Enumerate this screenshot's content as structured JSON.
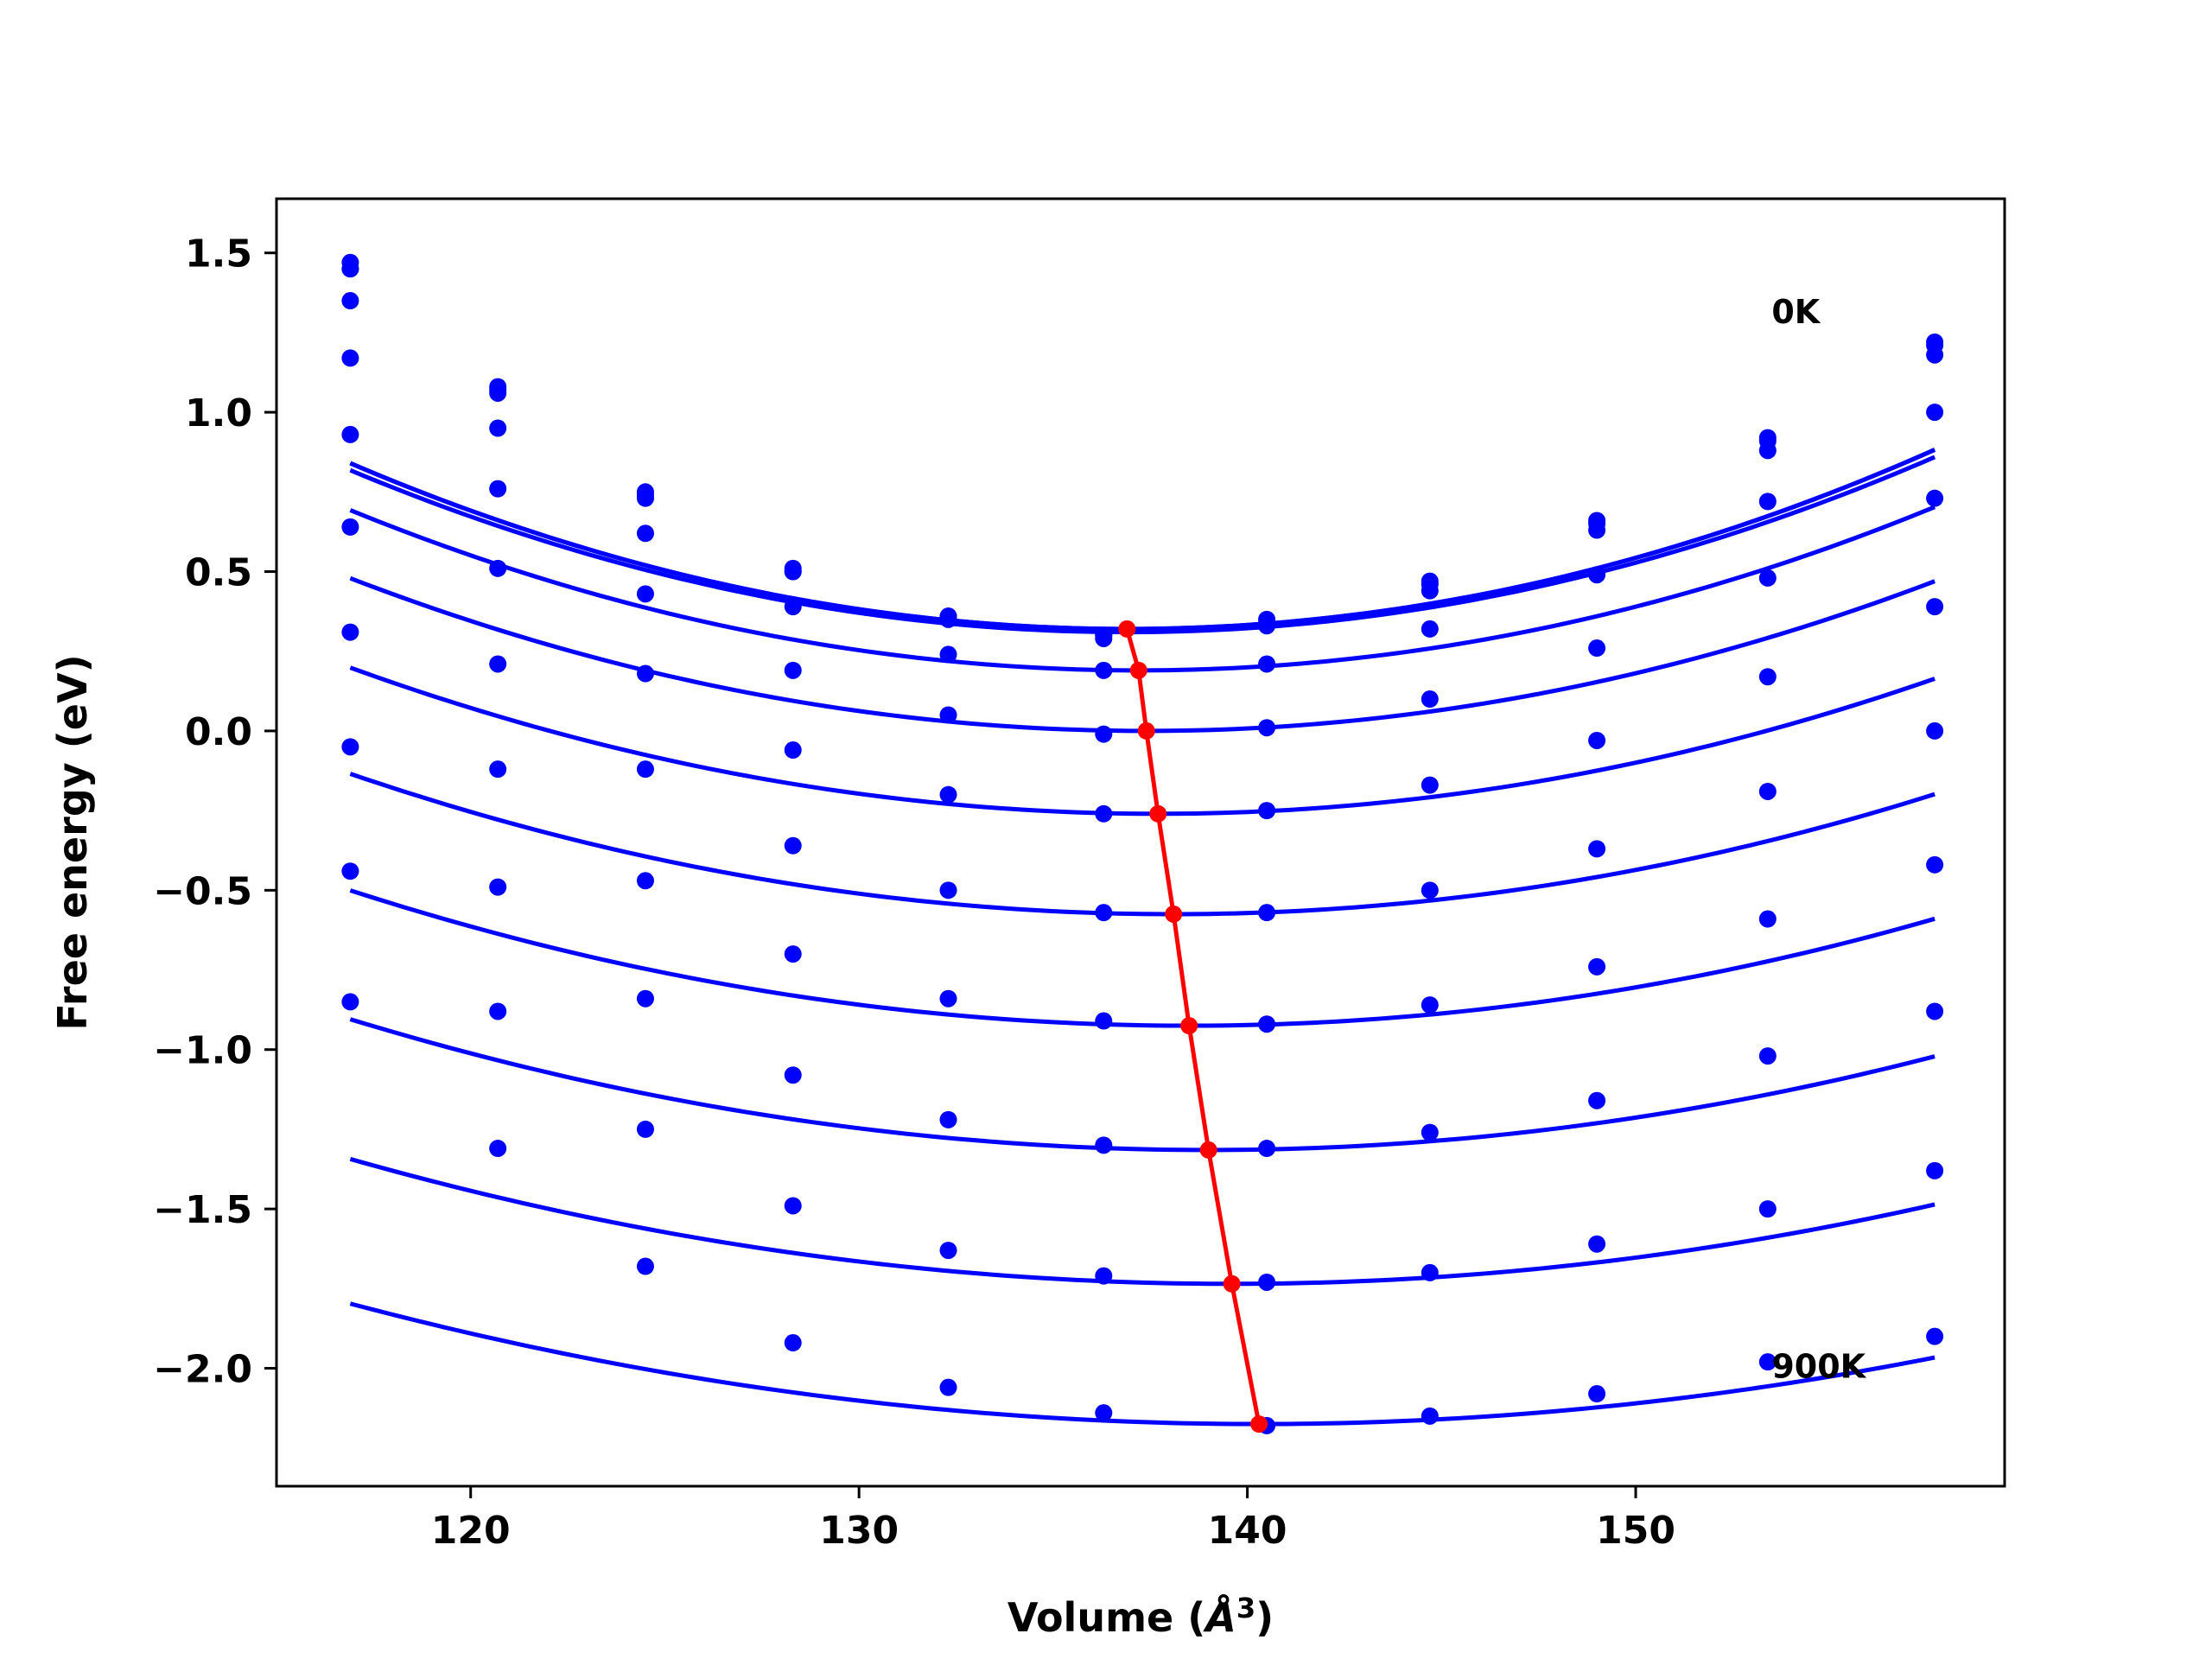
{
  "chart_data": {
    "type": "line",
    "title": "",
    "xlabel": "Volume (",
    "xlabel_symbol": "Å",
    "xlabel_superscript": "3",
    "xlabel_suffix": ")",
    "ylabel": "Free energy (eV)",
    "xlim": [
      115.0,
      159.5
    ],
    "ylim": [
      -2.37,
      1.67
    ],
    "xticks": [
      120,
      130,
      140,
      150
    ],
    "xtick_labels": [
      "120",
      "130",
      "140",
      "150"
    ],
    "yticks": [
      1.5,
      1.0,
      0.5,
      0.0,
      -0.5,
      -1.0,
      -1.5,
      -2.0
    ],
    "ytick_labels": [
      "1.5",
      "1.0",
      "0.5",
      "0.0",
      "−0.5",
      "−1.0",
      "−1.5",
      "−2.0"
    ],
    "grid": false,
    "annotations": [
      {
        "text": "0K",
        "x": 153.5,
        "y": 1.28
      },
      {
        "text": "900K",
        "x": 153.5,
        "y": -2.03
      }
    ],
    "series_color": "#0000ff",
    "min_path_color": "#ff0000",
    "volumes": [
      116.9,
      120.7,
      124.5,
      128.3,
      132.3,
      136.3,
      140.5,
      144.7,
      149.0,
      153.4,
      157.7
    ],
    "series": [
      {
        "values": [
          1.47,
          1.08,
          0.75,
          0.51,
          0.36,
          0.29,
          0.35,
          0.47,
          0.66,
          0.92,
          1.22
        ],
        "fit": [
          0.0013,
          136.9,
          0.32
        ]
      },
      {
        "values": [
          1.45,
          1.07,
          0.74,
          0.5,
          0.36,
          0.3,
          0.34,
          0.46,
          0.65,
          0.91,
          1.21
        ],
        "fit": [
          0.0013,
          136.9,
          0.32
        ]
      },
      {
        "values": [
          1.45,
          1.06,
          0.73,
          0.5,
          0.35,
          0.3,
          0.33,
          0.44,
          0.63,
          0.88,
          1.18
        ],
        "fit": [
          0.00127,
          136.9,
          0.31
        ]
      },
      {
        "values": [
          1.35,
          0.95,
          0.62,
          0.39,
          0.24,
          0.19,
          0.21,
          0.32,
          0.49,
          0.72,
          1.0
        ],
        "fit": [
          0.00122,
          137.2,
          0.19
        ]
      },
      {
        "values": [
          1.17,
          0.76,
          0.43,
          0.19,
          0.05,
          -0.01,
          0.01,
          0.1,
          0.26,
          0.48,
          0.73
        ],
        "fit": [
          0.00114,
          137.4,
          0.0
        ]
      },
      {
        "values": [
          0.93,
          0.51,
          0.18,
          -0.06,
          -0.2,
          -0.26,
          -0.25,
          -0.17,
          -0.03,
          0.17,
          0.39
        ],
        "fit": [
          0.00106,
          137.7,
          -0.26
        ]
      },
      {
        "values": [
          0.64,
          0.21,
          -0.12,
          -0.36,
          -0.5,
          -0.57,
          -0.57,
          -0.5,
          -0.37,
          -0.19,
          0.0
        ],
        "fit": [
          0.00098,
          138.1,
          -0.575
        ]
      },
      {
        "values": [
          0.31,
          -0.12,
          -0.47,
          -0.7,
          -0.84,
          -0.91,
          -0.92,
          -0.86,
          -0.74,
          -0.59,
          -0.42
        ],
        "fit": [
          0.00091,
          138.5,
          -0.925
        ]
      },
      {
        "values": [
          -0.05,
          -0.49,
          -0.84,
          -1.08,
          -1.22,
          -1.3,
          -1.31,
          -1.26,
          -1.16,
          -1.02,
          -0.88
        ],
        "fit": [
          0.00084,
          139.0,
          -1.315
        ]
      },
      {
        "values": [
          -0.44,
          -0.88,
          -1.25,
          -1.49,
          -1.63,
          -1.71,
          -1.73,
          -1.7,
          -1.61,
          -1.5,
          -1.38
        ],
        "fit": [
          0.00076,
          139.6,
          -1.735
        ]
      },
      {
        "values": [
          -0.85,
          -1.31,
          -1.68,
          -1.92,
          -2.06,
          -2.14,
          -2.18,
          -2.15,
          -2.08,
          -1.98,
          -1.9
        ],
        "fit": [
          0.00069,
          140.3,
          -2.175
        ]
      }
    ],
    "min_path": [
      {
        "x": 136.9,
        "y": 0.32
      },
      {
        "x": 137.2,
        "y": 0.19
      },
      {
        "x": 137.4,
        "y": 0.0
      },
      {
        "x": 137.7,
        "y": -0.26
      },
      {
        "x": 138.1,
        "y": -0.575
      },
      {
        "x": 138.5,
        "y": -0.925
      },
      {
        "x": 139.0,
        "y": -1.315
      },
      {
        "x": 139.6,
        "y": -1.735
      },
      {
        "x": 140.3,
        "y": -2.175
      }
    ]
  }
}
